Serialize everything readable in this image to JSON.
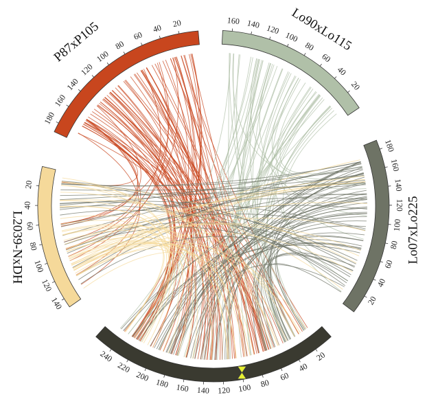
{
  "chart_data": {
    "type": "circos",
    "segments": [
      {
        "name": "P87xP105",
        "color": "#c8461e",
        "lim": [
          0,
          190
        ],
        "ticks": [
          20,
          40,
          60,
          80,
          100,
          120,
          140,
          160,
          180
        ]
      },
      {
        "name": "Lo90xLo115",
        "color": "#b0c0a8",
        "lim": [
          0,
          170
        ],
        "ticks": [
          20,
          40,
          60,
          80,
          100,
          120,
          140,
          160
        ]
      },
      {
        "name": "Lo07xLo225",
        "color": "#6e7365",
        "lim": [
          0,
          190
        ],
        "ticks": [
          20,
          40,
          60,
          80,
          100,
          120,
          140,
          160,
          180
        ]
      },
      {
        "name": "L2039-NxDH",
        "color": "#f5d99a",
        "lim": [
          0,
          150
        ],
        "ticks": [
          20,
          40,
          60,
          80,
          100,
          120,
          140
        ]
      },
      {
        "color": "#3a3a30",
        "lim": [
          0,
          260
        ],
        "ticks": [
          20,
          40,
          60,
          80,
          100,
          120,
          140,
          160,
          180,
          200,
          220,
          240
        ],
        "highlight": 100,
        "highlight_color": "#e6f032"
      }
    ]
  }
}
